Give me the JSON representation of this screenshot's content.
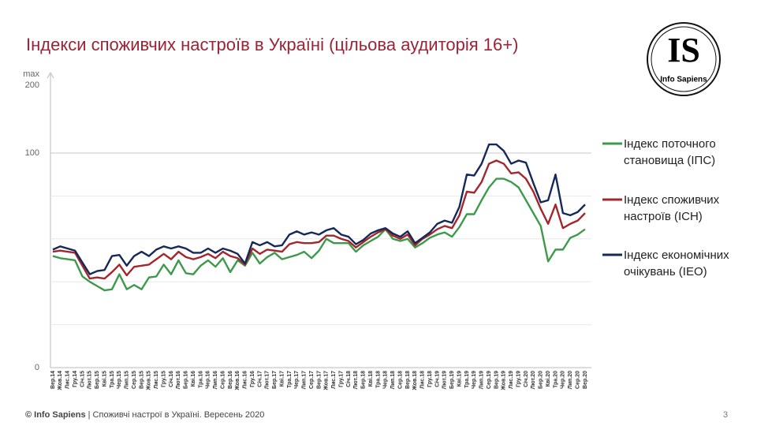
{
  "chart_data": {
    "type": "line",
    "title": "Індекси споживчих настроїв в Україні (цільова аудиторія 16+)",
    "categories": [
      "Вер.14",
      "Жов.14",
      "Лис.14",
      "Гру.14",
      "Січ.15",
      "Лют.15",
      "Бер.15",
      "Кві.15",
      "Тра.15",
      "Чер.15",
      "Лип.15",
      "Сер.15",
      "Вер.15",
      "Жов.15",
      "Лис.15",
      "Гру.15",
      "Січ.16",
      "Лют.16",
      "Бер.16",
      "Кві.16",
      "Тра.16",
      "Чер.16",
      "Лип.16",
      "Сер.16",
      "Вер.16",
      "Жов.16",
      "Лис.16",
      "Гру.16",
      "Січ.17",
      "Лют.17",
      "Бер.17",
      "Кві.17",
      "Тра.17",
      "Чер.17",
      "Лип.17",
      "Сер.17",
      "Вер.17",
      "Жов.17",
      "Лис.17",
      "Гру.17",
      "Січ.18",
      "Лют.18",
      "Бер.18",
      "Кві.18",
      "Тра.18",
      "Чер.18",
      "Лип.18",
      "Сер.18",
      "Вер.18",
      "Жов.18",
      "Лис.18",
      "Гру.18",
      "Січ.19",
      "Лют.19",
      "Бер.19",
      "Кві.19",
      "Тра.19",
      "Чер.19",
      "Лип.19",
      "Сер.19",
      "Вер.19",
      "Жов.19",
      "Лис.19",
      "Гру.19",
      "Січ.20",
      "Лют.20",
      "Бер.20",
      "Кві.20",
      "Тра.20",
      "Чер.20",
      "Лип.20",
      "Сер.20",
      "Вер.20"
    ],
    "series": [
      {
        "name": "Індекс поточного становища (ІПС)",
        "color": "#3d9a4b",
        "values": [
          52,
          51,
          50.5,
          50,
          42.5,
          40,
          38,
          36,
          36.5,
          43.5,
          36.5,
          38.5,
          36.5,
          42,
          42.5,
          48,
          43.5,
          50,
          44,
          43.5,
          47.5,
          50,
          47,
          51,
          44.5,
          50,
          47.5,
          53.5,
          48.5,
          51.5,
          53.5,
          50.5,
          51.5,
          52.5,
          54,
          51,
          54.5,
          60,
          58,
          58,
          58,
          54,
          57,
          59,
          61,
          64.5,
          60,
          59,
          60,
          56,
          58,
          60.5,
          62,
          63,
          61,
          65.5,
          71.5,
          71.5,
          78,
          84,
          88,
          88,
          86.5,
          84,
          78,
          72,
          66,
          49.5,
          55,
          55,
          60.5,
          62,
          64.5
        ]
      },
      {
        "name": "Індекс споживчих настроїв (ІСН)",
        "color": "#a3262c",
        "values": [
          54,
          54.5,
          54,
          53.5,
          47.5,
          41.5,
          42,
          41.5,
          44.5,
          48,
          43,
          47,
          47.5,
          48,
          50.5,
          53,
          50.5,
          54,
          51.5,
          50.5,
          51.5,
          53,
          51,
          54,
          52,
          51,
          48,
          55.5,
          53,
          55,
          54.5,
          54,
          57.5,
          58.5,
          58,
          58,
          58.5,
          61.5,
          61.5,
          60,
          59,
          56,
          58.5,
          61,
          63,
          64.5,
          61.5,
          60,
          62,
          57,
          60,
          62,
          64.5,
          66,
          65,
          71,
          82,
          81.5,
          86.5,
          95,
          96.5,
          95,
          90.5,
          91,
          88,
          82,
          74,
          67,
          76,
          65,
          67,
          68.5,
          72
        ]
      },
      {
        "name": "Індекс економічних очікувань (ІЕО)",
        "color": "#14285a",
        "values": [
          55,
          56.5,
          55.5,
          54.5,
          49,
          43.5,
          45,
          45.5,
          52,
          52.5,
          47.5,
          52,
          54,
          52,
          55,
          56.5,
          55.5,
          56.5,
          55.5,
          53.5,
          53.5,
          55.5,
          53.5,
          55.5,
          54.5,
          53,
          48.5,
          58.5,
          57,
          58.5,
          56.5,
          57,
          62,
          63.5,
          62,
          63,
          62,
          64,
          65,
          62,
          61,
          57.5,
          59.5,
          62.5,
          64,
          65,
          62.5,
          61,
          63.5,
          58,
          60.5,
          63,
          67,
          68.5,
          67.5,
          75,
          90,
          89.5,
          95,
          104,
          104,
          101,
          95,
          96.5,
          95.5,
          86,
          77,
          78,
          90,
          72,
          71,
          72.5,
          76
        ]
      }
    ],
    "ylim": [
      0,
      131.6
    ],
    "yticks": [
      0,
      100
    ],
    "minor_gridlines": [
      20,
      40,
      60,
      80
    ],
    "y_max_label": "max",
    "y_max": 200,
    "grid": true,
    "legend": "right"
  },
  "logo": {
    "mark": "IS",
    "name": "Info Sapiens"
  },
  "footer": {
    "brand": "© Info Sapiens",
    "text": "| Споживчі настрої в Україні. Вересень 2020",
    "page": 3
  }
}
